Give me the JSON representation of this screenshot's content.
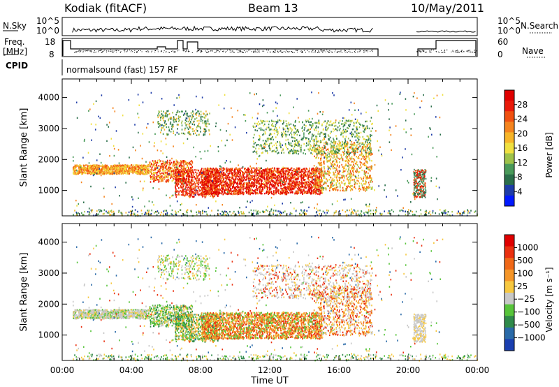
{
  "header": {
    "radar": "Kodiak (fitACF)",
    "beam": "Beam 13",
    "date": "10/May/2011"
  },
  "aux": {
    "nsky_label": "N.Sky",
    "nsearch_label": "N.Search",
    "freq_label": "Freq.",
    "freq_unit": "[MHz]",
    "nave_label": "Nave",
    "cpid_label": "CPID",
    "cpid_value": "normalsound (fast) 157 RF",
    "noise_ticks": [
      "10^5",
      "10^0"
    ],
    "freq_ticks": [
      "18",
      "8"
    ],
    "nave_ticks": [
      "60",
      "0"
    ]
  },
  "chart_data": [
    {
      "type": "heatmap",
      "quantity": "power",
      "xlabel": "",
      "ylabel": "Slant Range [km]",
      "ylim": [
        180,
        4600
      ],
      "xlim": [
        "00:00",
        "24:00"
      ],
      "y_ticks": [
        1000,
        2000,
        3000,
        4000
      ],
      "colorbar": {
        "label": "Power [dB]",
        "ticks": [
          4,
          8,
          12,
          16,
          20,
          24,
          28
        ],
        "colors": [
          "#0019ff",
          "#1e3ca8",
          "#2a6e4a",
          "#4a9a5a",
          "#9ec24a",
          "#f0e040",
          "#f7b528",
          "#f5841e",
          "#f05010",
          "#ea1a0a",
          "#e00000"
        ]
      }
    },
    {
      "type": "heatmap",
      "quantity": "velocity",
      "xlabel": "Time UT",
      "ylabel": "Slant Range [km]",
      "ylim": [
        180,
        4600
      ],
      "xlim": [
        "00:00",
        "24:00"
      ],
      "x_ticks": [
        "00:00",
        "04:00",
        "08:00",
        "12:00",
        "16:00",
        "20:00",
        "00:00"
      ],
      "y_ticks": [
        1000,
        2000,
        3000,
        4000
      ],
      "colorbar": {
        "label": "Velocity [m s⁻¹]",
        "ticks": [
          "1000",
          "500",
          "100",
          "25",
          "−25",
          "−100",
          "−500",
          "−1000"
        ],
        "colors": [
          "#1a3fb0",
          "#2a6aa8",
          "#2f8a4a",
          "#57c43a",
          "#c8c8c8",
          "#f7c840",
          "#f59628",
          "#f06818",
          "#ea3010",
          "#e00000"
        ]
      }
    }
  ]
}
